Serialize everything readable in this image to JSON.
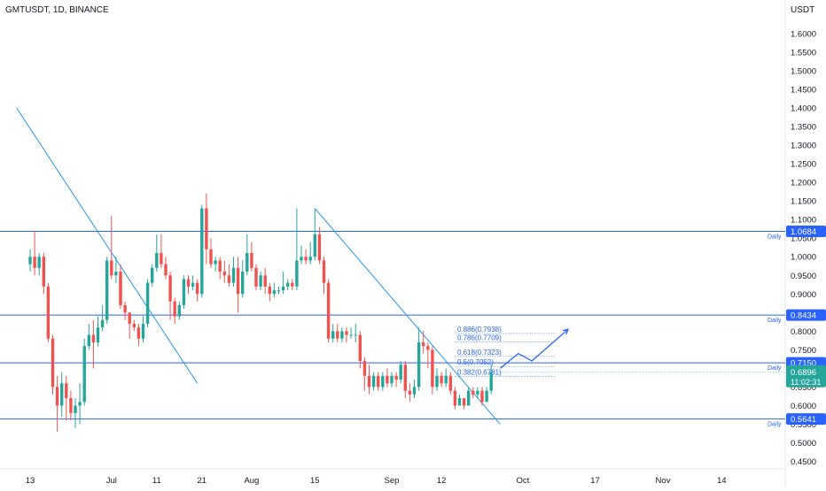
{
  "header": {
    "symbol_title": "GMTUSDT, 1D, BINANCE",
    "currency": "USDT"
  },
  "chart_data": {
    "type": "candlestick",
    "yticks": [
      "1.6000",
      "1.5500",
      "1.5000",
      "1.4500",
      "1.4000",
      "1.3500",
      "1.3000",
      "1.2500",
      "1.2000",
      "1.1500",
      "1.1000",
      "1.0500",
      "1.0000",
      "0.9500",
      "0.9000",
      "0.8500",
      "0.8000",
      "0.7500",
      "0.7000",
      "0.6500",
      "0.6000",
      "0.5500",
      "0.5000",
      "0.4500"
    ],
    "ytick_values": [
      1.6,
      1.55,
      1.5,
      1.45,
      1.4,
      1.35,
      1.3,
      1.25,
      1.2,
      1.15,
      1.1,
      1.05,
      1.0,
      0.95,
      0.9,
      0.85,
      0.8,
      0.75,
      0.7,
      0.65,
      0.6,
      0.55,
      0.5,
      0.45
    ],
    "ylim": [
      0.43,
      1.69
    ],
    "xticks": [
      {
        "label": "13",
        "day": 0
      },
      {
        "label": "Jul",
        "day": 18
      },
      {
        "label": "11",
        "day": 28
      },
      {
        "label": "21",
        "day": 38
      },
      {
        "label": "Aug",
        "day": 49
      },
      {
        "label": "15",
        "day": 63
      },
      {
        "label": "Sep",
        "day": 80
      },
      {
        "label": "12",
        "day": 91
      },
      {
        "label": "Oct",
        "day": 109
      },
      {
        "label": "17",
        "day": 125
      },
      {
        "label": "Nov",
        "day": 140
      },
      {
        "label": "14",
        "day": 153
      }
    ],
    "candles": [
      [
        0.98,
        1.0,
        0.96,
        1.02
      ],
      [
        1.0,
        0.97,
        0.95,
        1.07
      ],
      [
        0.97,
        1.0,
        0.95,
        1.01
      ],
      [
        1.0,
        0.92,
        0.9,
        1.01
      ],
      [
        0.92,
        0.78,
        0.77,
        0.93
      ],
      [
        0.78,
        0.65,
        0.63,
        0.79
      ],
      [
        0.65,
        0.6,
        0.53,
        0.68
      ],
      [
        0.6,
        0.66,
        0.57,
        0.69
      ],
      [
        0.66,
        0.62,
        0.56,
        0.68
      ],
      [
        0.62,
        0.58,
        0.56,
        0.64
      ],
      [
        0.58,
        0.6,
        0.54,
        0.62
      ],
      [
        0.6,
        0.61,
        0.55,
        0.66
      ],
      [
        0.61,
        0.76,
        0.6,
        0.78
      ],
      [
        0.76,
        0.79,
        0.75,
        0.82
      ],
      [
        0.79,
        0.77,
        0.7,
        0.83
      ],
      [
        0.77,
        0.81,
        0.76,
        0.84
      ],
      [
        0.81,
        0.83,
        0.8,
        0.87
      ],
      [
        0.83,
        0.99,
        0.82,
        1.0
      ],
      [
        0.99,
        0.95,
        0.94,
        1.11
      ],
      [
        0.95,
        0.96,
        0.93,
        1.0
      ],
      [
        0.96,
        0.87,
        0.86,
        0.98
      ],
      [
        0.87,
        0.85,
        0.83,
        0.88
      ],
      [
        0.85,
        0.82,
        0.78,
        0.85
      ],
      [
        0.82,
        0.81,
        0.8,
        0.83
      ],
      [
        0.81,
        0.78,
        0.76,
        0.82
      ],
      [
        0.78,
        0.82,
        0.77,
        0.84
      ],
      [
        0.82,
        0.93,
        0.81,
        0.94
      ],
      [
        0.93,
        0.97,
        0.92,
        0.98
      ],
      [
        0.97,
        1.01,
        0.96,
        1.06
      ],
      [
        1.01,
        0.98,
        0.97,
        1.06
      ],
      [
        0.98,
        0.95,
        0.94,
        1.0
      ],
      [
        0.95,
        0.88,
        0.83,
        0.96
      ],
      [
        0.88,
        0.84,
        0.82,
        0.89
      ],
      [
        0.84,
        0.87,
        0.83,
        0.88
      ],
      [
        0.87,
        0.94,
        0.86,
        0.95
      ],
      [
        0.94,
        0.92,
        0.9,
        0.95
      ],
      [
        0.92,
        0.93,
        0.91,
        0.95
      ],
      [
        0.93,
        0.9,
        0.88,
        0.94
      ],
      [
        0.9,
        1.13,
        0.89,
        1.14
      ],
      [
        1.13,
        1.02,
        0.98,
        1.17
      ],
      [
        1.02,
        0.98,
        0.97,
        1.05
      ],
      [
        0.98,
        0.99,
        0.96,
        1.0
      ],
      [
        0.99,
        0.96,
        0.94,
        1.0
      ],
      [
        0.96,
        0.95,
        0.93,
        0.99
      ],
      [
        0.95,
        0.93,
        0.92,
        0.98
      ],
      [
        0.93,
        0.97,
        0.92,
        1.0
      ],
      [
        0.97,
        0.9,
        0.85,
        1.0
      ],
      [
        0.9,
        0.96,
        0.89,
        0.99
      ],
      [
        0.96,
        1.01,
        0.95,
        1.06
      ],
      [
        1.01,
        0.97,
        0.96,
        1.04
      ],
      [
        0.97,
        0.92,
        0.91,
        0.98
      ],
      [
        0.92,
        0.95,
        0.91,
        0.96
      ],
      [
        0.95,
        0.92,
        0.9,
        0.97
      ],
      [
        0.92,
        0.9,
        0.88,
        0.93
      ],
      [
        0.9,
        0.91,
        0.89,
        0.93
      ],
      [
        0.91,
        0.91,
        0.9,
        0.92
      ],
      [
        0.91,
        0.92,
        0.9,
        0.96
      ],
      [
        0.92,
        0.93,
        0.91,
        0.94
      ],
      [
        0.93,
        0.92,
        0.91,
        0.94
      ],
      [
        0.92,
        0.99,
        0.91,
        1.13
      ],
      [
        0.99,
        1.0,
        0.98,
        1.03
      ],
      [
        1.0,
        0.99,
        0.98,
        1.02
      ],
      [
        0.99,
        1.0,
        0.98,
        1.04
      ],
      [
        1.0,
        1.06,
        0.99,
        1.13
      ],
      [
        1.06,
        0.99,
        0.98,
        1.08
      ],
      [
        0.99,
        0.93,
        0.9,
        1.0
      ],
      [
        0.93,
        0.78,
        0.77,
        0.94
      ],
      [
        0.78,
        0.8,
        0.77,
        0.82
      ],
      [
        0.8,
        0.78,
        0.77,
        0.82
      ],
      [
        0.78,
        0.8,
        0.77,
        0.81
      ],
      [
        0.8,
        0.79,
        0.77,
        0.81
      ],
      [
        0.79,
        0.79,
        0.78,
        0.81
      ],
      [
        0.79,
        0.79,
        0.77,
        0.82
      ],
      [
        0.79,
        0.72,
        0.7,
        0.8
      ],
      [
        0.72,
        0.68,
        0.64,
        0.73
      ],
      [
        0.68,
        0.65,
        0.63,
        0.71
      ],
      [
        0.65,
        0.68,
        0.64,
        0.69
      ],
      [
        0.68,
        0.65,
        0.64,
        0.69
      ],
      [
        0.65,
        0.68,
        0.64,
        0.69
      ],
      [
        0.68,
        0.66,
        0.65,
        0.7
      ],
      [
        0.66,
        0.68,
        0.65,
        0.69
      ],
      [
        0.68,
        0.67,
        0.65,
        0.69
      ],
      [
        0.67,
        0.71,
        0.66,
        0.72
      ],
      [
        0.71,
        0.64,
        0.62,
        0.72
      ],
      [
        0.64,
        0.63,
        0.61,
        0.66
      ],
      [
        0.63,
        0.65,
        0.62,
        0.67
      ],
      [
        0.65,
        0.77,
        0.64,
        0.81
      ],
      [
        0.77,
        0.76,
        0.74,
        0.8
      ],
      [
        0.76,
        0.75,
        0.7,
        0.77
      ],
      [
        0.75,
        0.65,
        0.63,
        0.76
      ],
      [
        0.65,
        0.68,
        0.64,
        0.7
      ],
      [
        0.68,
        0.66,
        0.65,
        0.69
      ],
      [
        0.66,
        0.68,
        0.65,
        0.7
      ],
      [
        0.68,
        0.64,
        0.63,
        0.69
      ],
      [
        0.64,
        0.6,
        0.59,
        0.65
      ],
      [
        0.6,
        0.62,
        0.6,
        0.63
      ],
      [
        0.62,
        0.6,
        0.59,
        0.62
      ],
      [
        0.6,
        0.64,
        0.6,
        0.65
      ],
      [
        0.64,
        0.63,
        0.62,
        0.65
      ],
      [
        0.63,
        0.64,
        0.62,
        0.65
      ],
      [
        0.64,
        0.61,
        0.6,
        0.65
      ],
      [
        0.61,
        0.64,
        0.61,
        0.65
      ],
      [
        0.64,
        0.69,
        0.63,
        0.71
      ]
    ],
    "horizontal_levels": [
      {
        "price": 1.0684,
        "label": "1.0684",
        "tag": "Daily"
      },
      {
        "price": 0.8434,
        "label": "0.8434",
        "tag": "Daily"
      },
      {
        "price": 0.715,
        "label": "0.7150",
        "tag": "Daily"
      },
      {
        "price": 0.5641,
        "label": "0.5641",
        "tag": "Daily"
      }
    ],
    "fib_levels": [
      {
        "label": "0.886(0.7938)",
        "price": 0.7938
      },
      {
        "label": "0.786(0.7709)",
        "price": 0.7709
      },
      {
        "label": "0.618(0.7323)",
        "price": 0.7323
      },
      {
        "label": "0.5(0.7052)",
        "price": 0.7052
      },
      {
        "label": "0.382(0.6781)",
        "price": 0.6781
      }
    ],
    "trendlines": [
      {
        "from": [
          -3,
          1.4
        ],
        "to": [
          37,
          0.66
        ]
      },
      {
        "from": [
          63,
          1.13
        ],
        "to": [
          104,
          0.55
        ]
      }
    ],
    "projection": [
      [
        104,
        0.7
      ],
      [
        108,
        0.74
      ],
      [
        111,
        0.72
      ],
      [
        119,
        0.805
      ]
    ],
    "current_price": {
      "label": "0.6896",
      "countdown": "11:02:31",
      "price": 0.6896
    },
    "colors": {
      "up": "#26a69a",
      "down": "#ef5350",
      "level": "#2962ff",
      "fib": "#2962ff",
      "trend": "#2196f3",
      "projection": "#2962ff",
      "axis_text": "#131722",
      "current": "#26a69a"
    }
  }
}
